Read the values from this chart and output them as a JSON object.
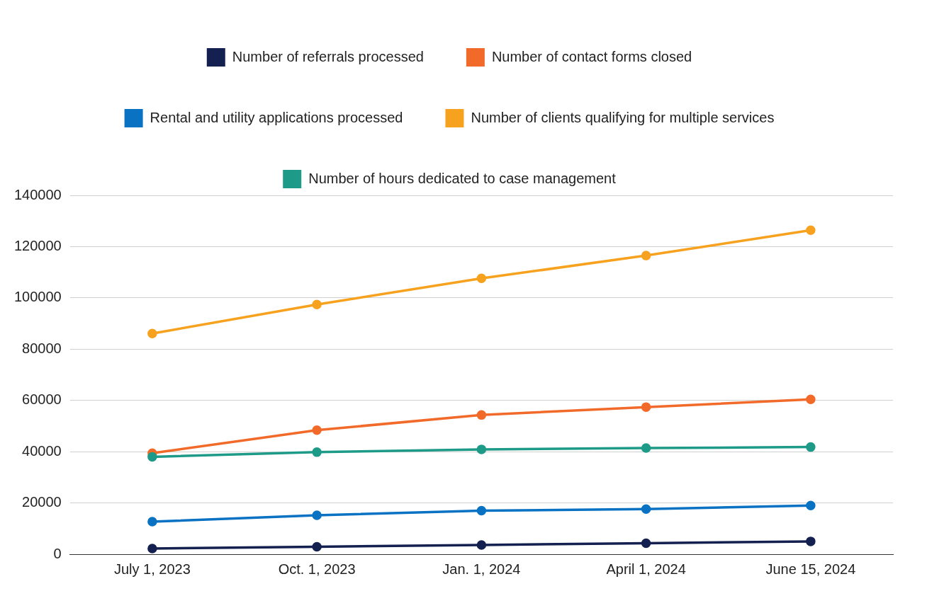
{
  "chart_data": {
    "type": "line",
    "categories": [
      "July 1, 2023",
      "Oct. 1, 2023",
      "Jan. 1, 2024",
      "April 1, 2024",
      "June 15, 2024"
    ],
    "series": [
      {
        "name": "Number of referrals processed",
        "color": "#14204f",
        "values": [
          2200,
          2900,
          3600,
          4300,
          5000
        ]
      },
      {
        "name": "Number of contact forms closed",
        "color": "#f26a29",
        "values": [
          39400,
          48400,
          54300,
          57400,
          60400
        ]
      },
      {
        "name": "Rental and utility applications processed",
        "color": "#0a72c3",
        "values": [
          12700,
          15200,
          17000,
          17600,
          19000
        ]
      },
      {
        "name": "Number of clients qualifying for multiple services",
        "color": "#f7a21f",
        "values": [
          86100,
          97400,
          107600,
          116500,
          126400
        ]
      },
      {
        "name": "Number of hours dedicated to case management",
        "color": "#1e9a88",
        "values": [
          38000,
          39800,
          40900,
          41400,
          41800
        ]
      }
    ],
    "ylim": [
      0,
      140000
    ],
    "yticks": [
      0,
      20000,
      40000,
      60000,
      80000,
      100000,
      120000,
      140000
    ],
    "grid": "y",
    "legend": "top",
    "marker": "circle",
    "line_style": "solid"
  }
}
